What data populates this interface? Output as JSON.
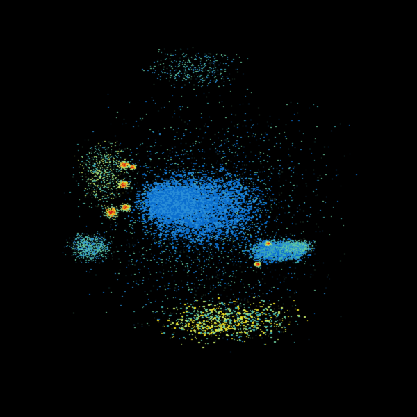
{
  "image": {
    "kind": "radar-reflectivity",
    "background_color": "#000000",
    "palette": {
      "blue": "#0a6ecf",
      "light_blue": "#2a8fd8",
      "teal": "#3fb0b0",
      "cyan_green": "#6fd0a0",
      "green_yellow": "#c8e86a",
      "yellow": "#f0e020",
      "orange": "#f08020",
      "red": "#c81010"
    }
  }
}
